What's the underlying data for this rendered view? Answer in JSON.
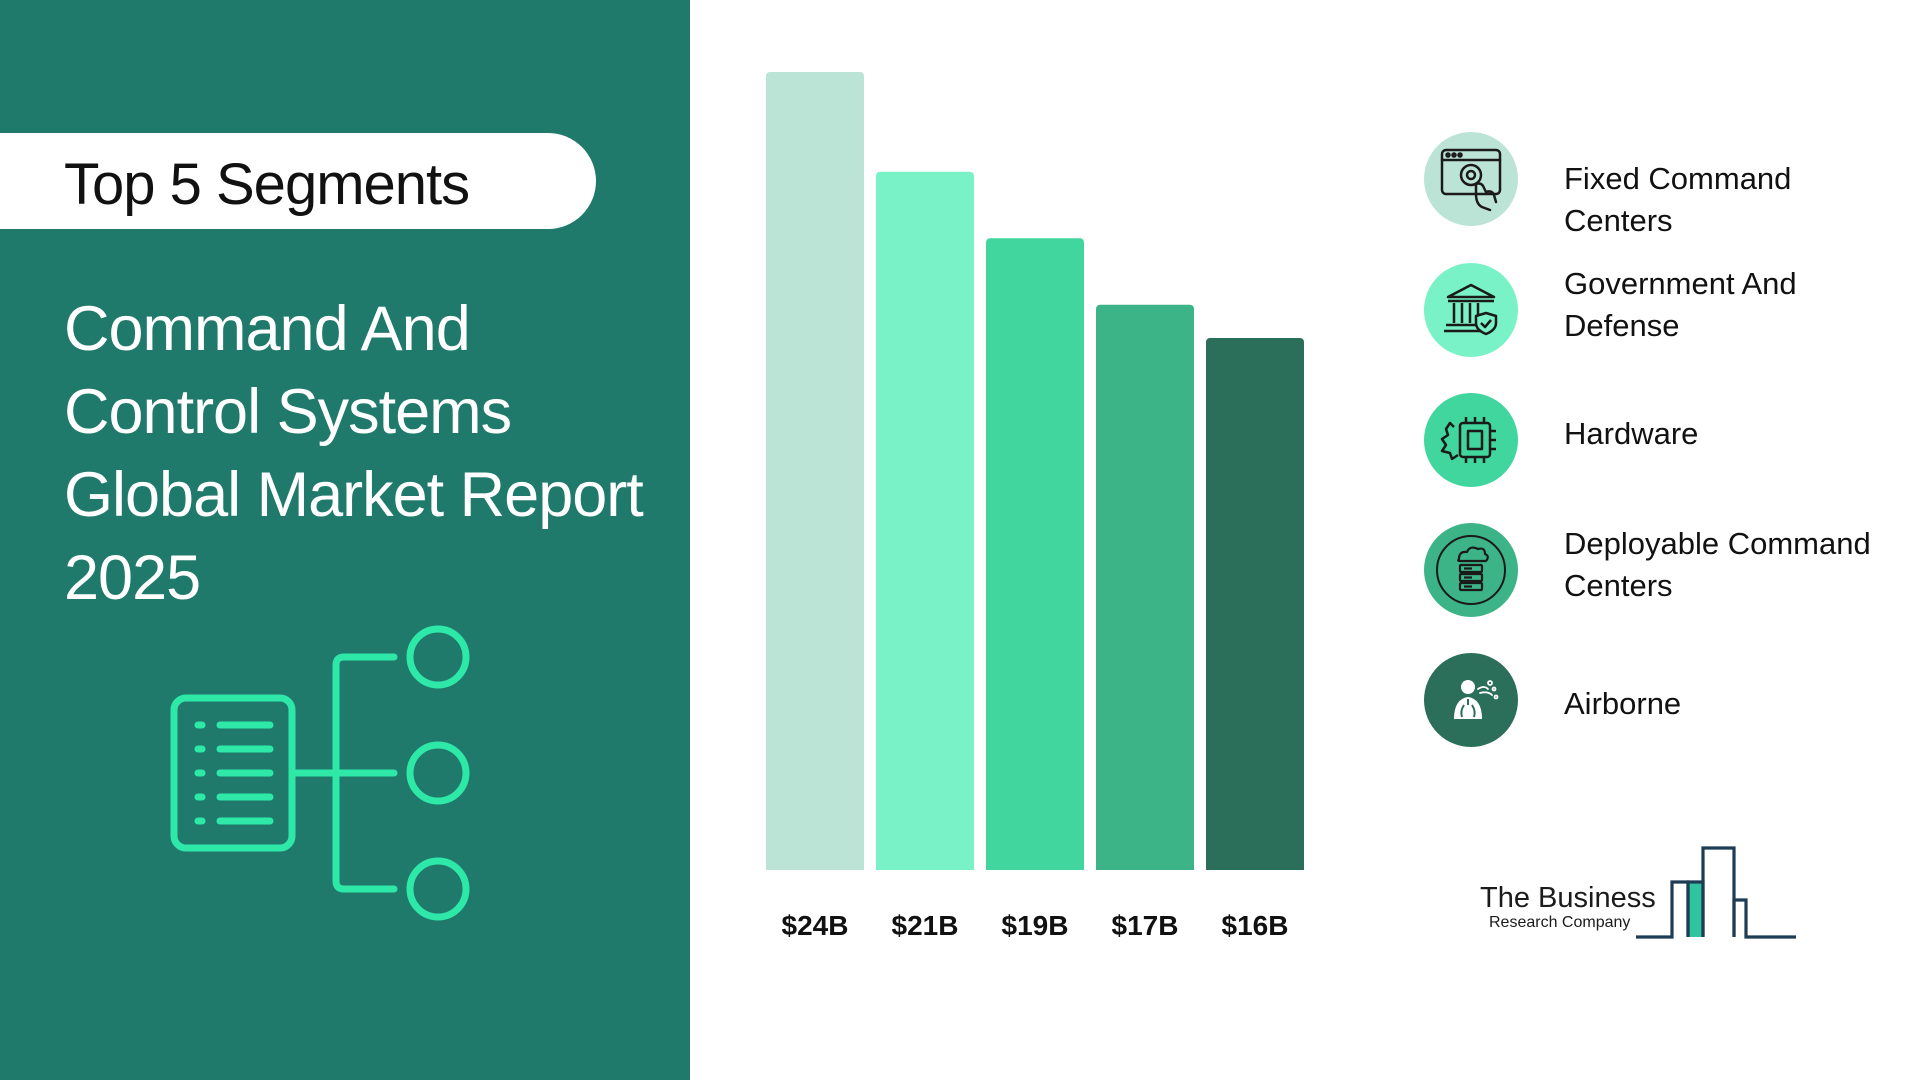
{
  "left": {
    "pill_label": "Top 5 Segments",
    "title_lines": [
      "Command And",
      "Control Systems",
      "Global Market Report",
      "2025"
    ]
  },
  "chart_data": {
    "type": "bar",
    "categories": [
      "Fixed Command Centers",
      "Government And Defense",
      "Hardware",
      "Deployable Command Centers",
      "Airborne"
    ],
    "values": [
      24,
      21,
      19,
      17,
      16
    ],
    "value_labels": [
      "$24B",
      "$21B",
      "$19B",
      "$17B",
      "$16B"
    ],
    "unit": "$B",
    "colors": [
      "#bce4d6",
      "#78f2c6",
      "#40d69d",
      "#3db487",
      "#2b6e59"
    ],
    "title": "",
    "xlabel": "",
    "ylabel": "",
    "grid": false
  },
  "legend": {
    "items": [
      {
        "label_lines": [
          "Fixed Command Centers"
        ],
        "icon": "touch-screen-gear-icon",
        "color": "#bce4d6"
      },
      {
        "label_lines": [
          "Government And",
          "Defense"
        ],
        "icon": "government-building-icon",
        "color": "#78f2c6"
      },
      {
        "label_lines": [
          "Hardware"
        ],
        "icon": "chip-gear-icon",
        "color": "#40d69d"
      },
      {
        "label_lines": [
          "Deployable Command",
          "Centers"
        ],
        "icon": "server-cloud-icon",
        "color": "#3db487"
      },
      {
        "label_lines": [
          "Airborne"
        ],
        "icon": "person-lungs-icon",
        "color": "#2b6e59"
      }
    ]
  },
  "logo": {
    "line1": "The Business",
    "line2": "Research Company"
  },
  "colors": {
    "panel": "#1f7a6b",
    "accent": "#2ee8a8"
  }
}
